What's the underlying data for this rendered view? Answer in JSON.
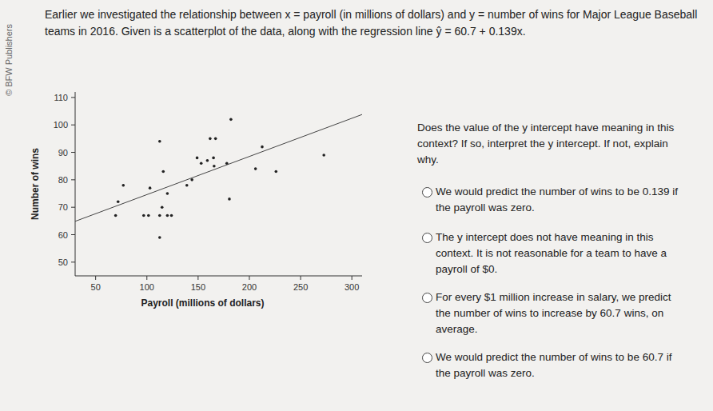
{
  "page": {
    "intro": "Earlier we investigated the relationship between x = payroll (in millions of dollars) and y = number of wins for Major League Baseball teams in 2016. Given is a scatterplot of the data, along with the regression line ŷ = 60.7 + 0.139x.",
    "watermark": "© BFW Publishers",
    "question": "Does the value of the y intercept have meaning in this context? If so, interpret the y intercept. If not, explain why.",
    "options": [
      "We would predict the number of wins to be 0.139 if the payroll was zero.",
      "The y intercept does not have meaning in this context. It is not reasonable for a team to have a payroll of $0.",
      "For every $1 million increase in salary, we predict the number of wins to increase by 60.7 wins, on average.",
      "We would predict the number of wins to be 60.7 if the payroll was zero."
    ]
  },
  "chart_data": {
    "type": "scatter",
    "x_label": "Payroll (millions of dollars)",
    "y_label": "Number of wins",
    "x": [
      182,
      112.5,
      161.7,
      167,
      212.5,
      272.7,
      149,
      159,
      165,
      153,
      165.6,
      178,
      206,
      116,
      226,
      77,
      144,
      103,
      139,
      120,
      71.9,
      180.5,
      114.8,
      69.5,
      96.9,
      101.6,
      112.5,
      120,
      124,
      112.5
    ],
    "values": [
      102,
      94,
      95,
      95,
      92,
      89,
      88,
      87,
      88,
      86,
      85,
      86,
      84,
      83,
      83,
      78,
      80,
      77,
      78,
      75,
      72,
      73,
      70,
      67,
      67,
      67,
      67,
      67,
      67,
      59
    ],
    "regression": {
      "intercept": 60.7,
      "slope": 0.139
    },
    "color": "#222222",
    "xlim": [
      30,
      310
    ],
    "ylim": [
      45,
      112
    ],
    "xticks": [
      50,
      100,
      150,
      200,
      250,
      300
    ],
    "yticks": [
      50,
      60,
      70,
      80,
      90,
      100,
      110
    ],
    "grid": false
  }
}
